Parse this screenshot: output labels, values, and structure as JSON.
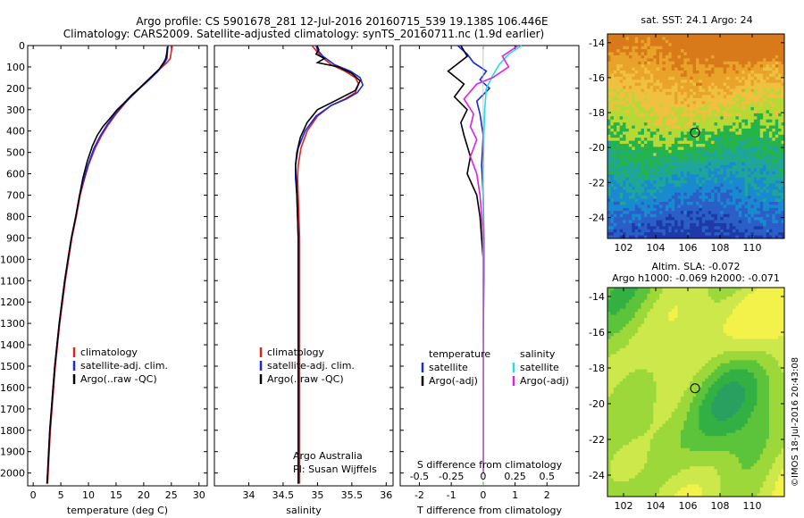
{
  "header": {
    "line1": "Argo profile: CS 5901678_281 12-Jul-2016 20160715_539 19.138S 106.446E",
    "line2": "Climatology: CARS2009. Satellite-adjusted climatology: synTS_20160711.nc (1.9d earlier)"
  },
  "credit": "©IMOS 18-Jul-2016 20:43:08",
  "sst_map": {
    "title": "sat. SST: 24.1  Argo: 24",
    "y_ticks": [
      "-14",
      "-16",
      "-18",
      "-20",
      "-22",
      "-24"
    ],
    "x_ticks": [
      "102",
      "104",
      "106",
      "108",
      "110"
    ],
    "colors": [
      "#d97a1a",
      "#e9a32a",
      "#f0c040",
      "#b8d836",
      "#25b34a",
      "#1fa59a",
      "#1a8ad0",
      "#2b5fc8",
      "#1e3aa8"
    ]
  },
  "sla_map": {
    "title1": "Altim. SLA: -0.072",
    "title2": "Argo h1000: -0.069  h2000: -0.071",
    "y_ticks": [
      "-14",
      "-16",
      "-18",
      "-20",
      "-22",
      "-24"
    ],
    "x_ticks": [
      "102",
      "104",
      "106",
      "108",
      "110"
    ],
    "colors": [
      "#f2f24a",
      "#cce84a",
      "#9cd83a",
      "#5cc43a",
      "#32b044",
      "#2aa060"
    ]
  },
  "depth_ticks": [
    "0",
    "100",
    "200",
    "300",
    "400",
    "500",
    "600",
    "700",
    "800",
    "900",
    "1000",
    "1100",
    "1200",
    "1300",
    "1400",
    "1500",
    "1600",
    "1700",
    "1800",
    "1900",
    "2000"
  ],
  "chart_data": [
    {
      "type": "line",
      "xlabel": "temperature (deg C)",
      "xlim": [
        -1,
        31.5
      ],
      "ylim": [
        2060,
        0
      ],
      "x_ticks": [
        "0",
        "5",
        "10",
        "15",
        "20",
        "25",
        "30"
      ],
      "legend": [
        "climatology",
        "satellite-adj. clim.",
        "Argo(..raw -QC)"
      ],
      "series": [
        {
          "name": "climatology",
          "color": "#e02020",
          "points": [
            [
              25.2,
              0
            ],
            [
              25,
              25
            ],
            [
              24.8,
              60
            ],
            [
              24.2,
              80
            ],
            [
              22.5,
              120
            ],
            [
              20.8,
              160
            ],
            [
              19.2,
              200
            ],
            [
              17.6,
              240
            ],
            [
              16.3,
              280
            ],
            [
              15.0,
              320
            ],
            [
              13.6,
              370
            ],
            [
              12.4,
              420
            ],
            [
              11.2,
              480
            ],
            [
              10.0,
              560
            ],
            [
              9.1,
              640
            ],
            [
              8.5,
              700
            ],
            [
              7.8,
              800
            ],
            [
              7.0,
              900
            ],
            [
              6.4,
              1000
            ],
            [
              5.8,
              1100
            ],
            [
              5.3,
              1200
            ],
            [
              4.8,
              1300
            ],
            [
              4.4,
              1400
            ],
            [
              4.0,
              1500
            ],
            [
              3.7,
              1600
            ],
            [
              3.4,
              1700
            ],
            [
              3.1,
              1800
            ],
            [
              2.9,
              1900
            ],
            [
              2.7,
              2000
            ],
            [
              2.6,
              2050
            ]
          ]
        },
        {
          "name": "satellite-adj. clim.",
          "color": "#1a2ad8",
          "points": [
            [
              24.4,
              0
            ],
            [
              24.3,
              25
            ],
            [
              24.2,
              60
            ],
            [
              23.8,
              80
            ],
            [
              22.6,
              120
            ],
            [
              21.0,
              160
            ],
            [
              19.3,
              200
            ],
            [
              17.7,
              240
            ],
            [
              16.2,
              280
            ],
            [
              14.8,
              320
            ],
            [
              13.4,
              370
            ],
            [
              12.2,
              420
            ],
            [
              11.0,
              480
            ],
            [
              9.9,
              560
            ],
            [
              9.0,
              640
            ],
            [
              8.4,
              700
            ],
            [
              7.7,
              800
            ],
            [
              6.9,
              900
            ],
            [
              6.3,
              1000
            ],
            [
              5.7,
              1100
            ],
            [
              5.2,
              1200
            ],
            [
              4.7,
              1300
            ],
            [
              4.3,
              1400
            ],
            [
              3.9,
              1500
            ],
            [
              3.6,
              1600
            ],
            [
              3.3,
              1700
            ],
            [
              3.0,
              1800
            ],
            [
              2.8,
              1900
            ],
            [
              2.6,
              2000
            ],
            [
              2.5,
              2050
            ]
          ]
        },
        {
          "name": "Argo(..raw -QC)",
          "color": "#000000",
          "points": [
            [
              24.3,
              5
            ],
            [
              24.2,
              30
            ],
            [
              24.0,
              60
            ],
            [
              23.6,
              80
            ],
            [
              22.8,
              110
            ],
            [
              21.2,
              150
            ],
            [
              19.6,
              190
            ],
            [
              17.9,
              230
            ],
            [
              16.4,
              270
            ],
            [
              15.2,
              300
            ],
            [
              13.9,
              340
            ],
            [
              12.6,
              380
            ],
            [
              11.6,
              420
            ],
            [
              10.7,
              470
            ],
            [
              9.8,
              540
            ],
            [
              9.0,
              620
            ],
            [
              8.4,
              700
            ],
            [
              7.7,
              800
            ],
            [
              6.9,
              900
            ],
            [
              6.3,
              1000
            ],
            [
              5.7,
              1100
            ],
            [
              5.2,
              1200
            ],
            [
              4.7,
              1300
            ],
            [
              4.3,
              1400
            ],
            [
              3.9,
              1500
            ],
            [
              3.6,
              1600
            ],
            [
              3.3,
              1700
            ],
            [
              3.0,
              1800
            ],
            [
              2.8,
              1900
            ],
            [
              2.6,
              2000
            ],
            [
              2.5,
              2050
            ]
          ]
        }
      ]
    },
    {
      "type": "line",
      "xlabel": "salinity",
      "xlim": [
        33.5,
        36.1
      ],
      "ylim": [
        2060,
        0
      ],
      "x_ticks": [
        "34",
        "34.5",
        "35",
        "35.5",
        "36"
      ],
      "legend": [
        "climatology",
        "satellite-adj. clim.",
        "Argo(..raw -QC)"
      ],
      "annotation": [
        "Argo Australia",
        "PI: Susan Wijffels"
      ],
      "series": [
        {
          "name": "climatology",
          "color": "#e02020",
          "points": [
            [
              34.92,
              0
            ],
            [
              34.97,
              20
            ],
            [
              35.05,
              50
            ],
            [
              35.2,
              90
            ],
            [
              35.4,
              120
            ],
            [
              35.55,
              150
            ],
            [
              35.6,
              180
            ],
            [
              35.55,
              220
            ],
            [
              35.4,
              250
            ],
            [
              35.2,
              280
            ],
            [
              35.0,
              330
            ],
            [
              34.85,
              400
            ],
            [
              34.76,
              480
            ],
            [
              34.72,
              560
            ],
            [
              34.71,
              620
            ],
            [
              34.72,
              700
            ],
            [
              34.73,
              800
            ],
            [
              34.74,
              900
            ],
            [
              34.74,
              1000
            ],
            [
              34.74,
              1200
            ],
            [
              34.74,
              1400
            ],
            [
              34.74,
              1600
            ],
            [
              34.74,
              1800
            ],
            [
              34.74,
              2000
            ],
            [
              34.74,
              2050
            ]
          ]
        },
        {
          "name": "satellite-adj. clim.",
          "color": "#1a2ad8",
          "points": [
            [
              34.98,
              0
            ],
            [
              35.0,
              20
            ],
            [
              35.08,
              50
            ],
            [
              35.25,
              90
            ],
            [
              35.48,
              120
            ],
            [
              35.62,
              150
            ],
            [
              35.66,
              185
            ],
            [
              35.58,
              220
            ],
            [
              35.42,
              250
            ],
            [
              35.2,
              280
            ],
            [
              34.98,
              330
            ],
            [
              34.82,
              400
            ],
            [
              34.72,
              480
            ],
            [
              34.68,
              560
            ],
            [
              34.68,
              620
            ],
            [
              34.7,
              700
            ],
            [
              34.71,
              800
            ],
            [
              34.72,
              900
            ],
            [
              34.72,
              1000
            ],
            [
              34.72,
              1200
            ],
            [
              34.72,
              1400
            ],
            [
              34.72,
              1600
            ],
            [
              34.72,
              1800
            ],
            [
              34.72,
              2000
            ],
            [
              34.72,
              2050
            ]
          ]
        },
        {
          "name": "Argo(..raw -QC)",
          "color": "#000000",
          "points": [
            [
              35.0,
              5
            ],
            [
              35.02,
              20
            ],
            [
              34.98,
              40
            ],
            [
              35.1,
              60
            ],
            [
              35.0,
              80
            ],
            [
              35.3,
              100
            ],
            [
              35.5,
              130
            ],
            [
              35.62,
              165
            ],
            [
              35.55,
              210
            ],
            [
              35.25,
              260
            ],
            [
              35.0,
              300
            ],
            [
              34.85,
              360
            ],
            [
              34.75,
              430
            ],
            [
              34.7,
              500
            ],
            [
              34.68,
              560
            ],
            [
              34.69,
              620
            ],
            [
              34.7,
              700
            ],
            [
              34.71,
              800
            ],
            [
              34.72,
              900
            ],
            [
              34.72,
              1000
            ],
            [
              34.72,
              1200
            ],
            [
              34.72,
              1400
            ],
            [
              34.72,
              1600
            ],
            [
              34.72,
              1800
            ],
            [
              34.72,
              2000
            ],
            [
              34.72,
              2050
            ]
          ]
        }
      ]
    },
    {
      "type": "line",
      "xlabel": "T difference from climatology",
      "xlabel_top": "S difference from climatology",
      "xlim": [
        -2.6,
        3.0
      ],
      "ylim": [
        2060,
        0
      ],
      "x_ticks": [
        "-2",
        "-1",
        "0",
        "1",
        "2"
      ],
      "x_ticks_s": [
        "-0.5",
        "-0.25",
        "0",
        "0.25",
        "0.5"
      ],
      "legend_t_title": "temperature",
      "legend_s_title": "salinity",
      "legend_t": [
        "satellite",
        "Argo(-adj)"
      ],
      "legend_s": [
        "satellite",
        "Argo(-adj)"
      ],
      "series": [
        {
          "name": "satellite",
          "color": "#1a2ad8",
          "points": [
            [
              -0.8,
              0
            ],
            [
              -0.5,
              40
            ],
            [
              -0.3,
              80
            ],
            [
              0.1,
              120
            ],
            [
              -0.1,
              160
            ],
            [
              0.2,
              200
            ],
            [
              -0.2,
              260
            ],
            [
              -0.1,
              320
            ],
            [
              0.0,
              420
            ],
            [
              -0.05,
              560
            ],
            [
              0.0,
              700
            ],
            [
              0.02,
              900
            ],
            [
              0.02,
              1100
            ],
            [
              0.0,
              1400
            ],
            [
              0.0,
              1700
            ],
            [
              0.0,
              2000
            ]
          ]
        },
        {
          "name": "Argo(-adj)",
          "color": "#000000",
          "points": [
            [
              -0.7,
              0
            ],
            [
              -0.5,
              50
            ],
            [
              -1.1,
              120
            ],
            [
              -0.6,
              180
            ],
            [
              -0.9,
              240
            ],
            [
              -0.5,
              300
            ],
            [
              -0.7,
              360
            ],
            [
              -0.6,
              420
            ],
            [
              -0.4,
              520
            ],
            [
              -0.5,
              600
            ],
            [
              -0.2,
              700
            ],
            [
              -0.1,
              800
            ],
            [
              -0.05,
              900
            ],
            [
              0.0,
              1000
            ],
            [
              0.0,
              1200
            ],
            [
              0.0,
              1500
            ],
            [
              0.0,
              1800
            ],
            [
              0.0,
              2000
            ]
          ]
        },
        {
          "name": "satellite",
          "color": "#20e0e0",
          "points": [
            [
              1.2,
              0
            ],
            [
              0.8,
              40
            ],
            [
              0.5,
              90
            ],
            [
              0.3,
              140
            ],
            [
              0.1,
              200
            ],
            [
              0.05,
              300
            ],
            [
              0.02,
              420
            ],
            [
              0.0,
              600
            ],
            [
              0.0,
              800
            ],
            [
              0.0,
              1000
            ],
            [
              0.0,
              1300
            ],
            [
              0.0,
              1600
            ],
            [
              0.0,
              2000
            ]
          ]
        },
        {
          "name": "Argo(-adj)",
          "color": "#e020e0",
          "points": [
            [
              1.1,
              0
            ],
            [
              0.6,
              50
            ],
            [
              0.8,
              100
            ],
            [
              0.3,
              150
            ],
            [
              -0.2,
              180
            ],
            [
              -0.6,
              250
            ],
            [
              -0.3,
              320
            ],
            [
              -0.4,
              380
            ],
            [
              -0.2,
              440
            ],
            [
              -0.4,
              520
            ],
            [
              -0.2,
              600
            ],
            [
              -0.1,
              700
            ],
            [
              -0.05,
              800
            ],
            [
              0.0,
              900
            ],
            [
              0.0,
              1100
            ],
            [
              0.0,
              1400
            ],
            [
              0.0,
              1700
            ],
            [
              0.0,
              2000
            ]
          ]
        }
      ]
    }
  ]
}
